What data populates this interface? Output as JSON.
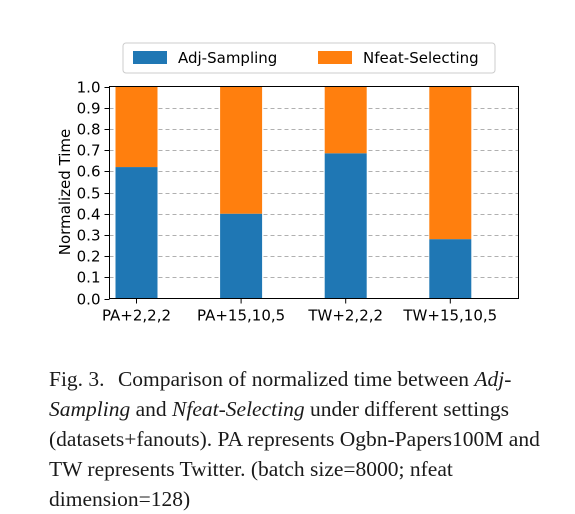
{
  "chart_data": {
    "type": "bar",
    "stacked": true,
    "categories": [
      "PA+2,2,2",
      "PA+15,10,5",
      "TW+2,2,2",
      "TW+15,10,5"
    ],
    "series": [
      {
        "name": "Adj-Sampling",
        "color": "#1f77b4",
        "values": [
          0.62,
          0.4,
          0.685,
          0.28
        ]
      },
      {
        "name": "Nfeat-Selecting",
        "color": "#ff7f0e",
        "values": [
          0.38,
          0.6,
          0.315,
          0.72
        ]
      }
    ],
    "ylabel": "Normalized Time",
    "xlabel": "",
    "ylim": [
      0,
      1.0
    ],
    "yticks": [
      "0.0",
      "0.1",
      "0.2",
      "0.3",
      "0.4",
      "0.5",
      "0.6",
      "0.7",
      "0.8",
      "0.9",
      "1.0"
    ],
    "grid": "horizontal-dashed",
    "legend_position": "top"
  },
  "caption": {
    "label": "Fig. 3.",
    "text_1": "Comparison of normalized time between",
    "term_1": "Adj-Sampling",
    "text_2": "and",
    "term_2": "Nfeat-Selecting",
    "text_3": "under different settings (datasets+fanouts). PA represents Ogbn-Papers100M and TW represents Twitter. (batch size=8000; nfeat dimension=128)"
  }
}
